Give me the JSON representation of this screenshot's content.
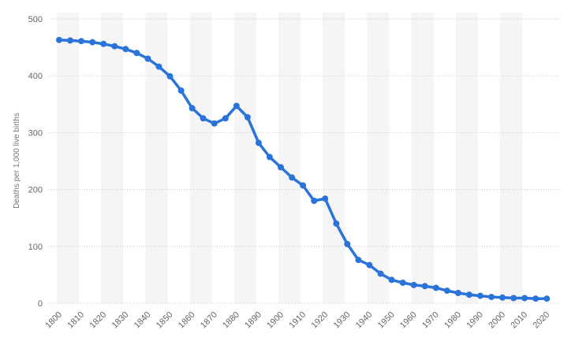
{
  "chart_data": {
    "type": "line",
    "ylabel": "Deaths per 1,000 live births",
    "xlabel": "",
    "ylim": [
      0,
      500
    ],
    "yticks": [
      0,
      100,
      200,
      300,
      400,
      500
    ],
    "xticks": [
      "1800",
      "1810",
      "1820",
      "1830",
      "1840",
      "1850",
      "1860",
      "1870",
      "1880",
      "1890",
      "1900",
      "1910",
      "1920",
      "1930",
      "1940",
      "1950",
      "1960",
      "1970",
      "1980",
      "1990",
      "2000",
      "2010",
      "2020"
    ],
    "grid": "horizontal dotted",
    "legend": "none",
    "color": "#2a73d9",
    "series": [
      {
        "points": [
          [
            1800,
            463
          ],
          [
            1805,
            462
          ],
          [
            1810,
            461
          ],
          [
            1815,
            459
          ],
          [
            1820,
            456
          ],
          [
            1825,
            452
          ],
          [
            1830,
            447
          ],
          [
            1835,
            440
          ],
          [
            1840,
            430
          ],
          [
            1845,
            416
          ],
          [
            1850,
            399
          ],
          [
            1855,
            374
          ],
          [
            1860,
            343
          ],
          [
            1865,
            325
          ],
          [
            1870,
            316
          ],
          [
            1875,
            325
          ],
          [
            1880,
            347
          ],
          [
            1885,
            327
          ],
          [
            1890,
            282
          ],
          [
            1895,
            257
          ],
          [
            1900,
            239
          ],
          [
            1905,
            221
          ],
          [
            1910,
            207
          ],
          [
            1915,
            180
          ],
          [
            1920,
            184
          ],
          [
            1925,
            140
          ],
          [
            1930,
            104
          ],
          [
            1935,
            76
          ],
          [
            1940,
            67
          ],
          [
            1945,
            52
          ],
          [
            1950,
            41
          ],
          [
            1955,
            36
          ],
          [
            1960,
            32
          ],
          [
            1965,
            30
          ],
          [
            1970,
            27
          ],
          [
            1975,
            22
          ],
          [
            1980,
            18
          ],
          [
            1985,
            15
          ],
          [
            1990,
            13
          ],
          [
            1995,
            11
          ],
          [
            2000,
            10
          ],
          [
            2005,
            9
          ],
          [
            2010,
            9
          ],
          [
            2015,
            8
          ],
          [
            2020,
            8
          ]
        ]
      }
    ]
  }
}
